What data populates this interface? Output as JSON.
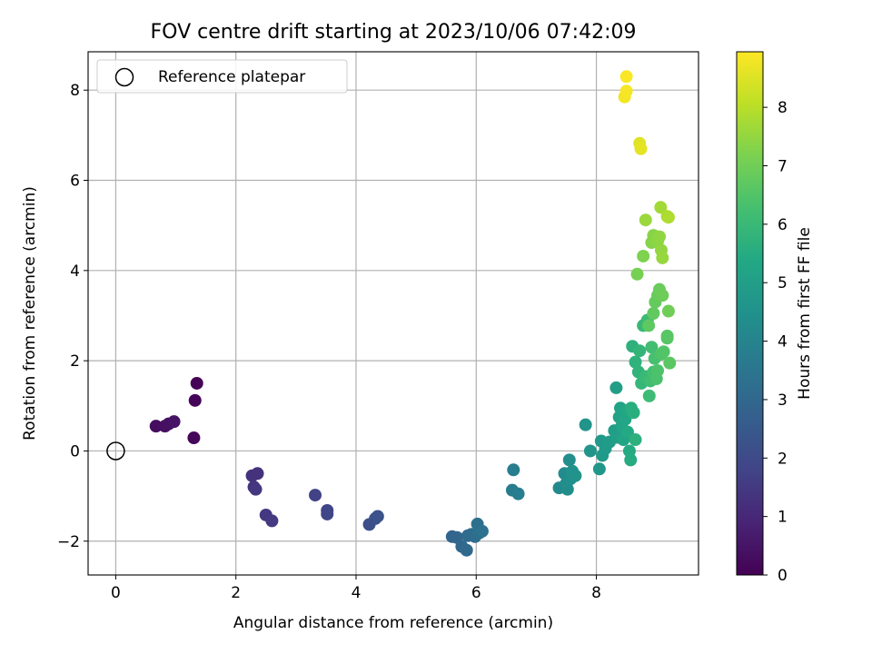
{
  "chart_data": {
    "type": "scatter",
    "title": "FOV centre drift starting at 2023/10/06 07:42:09",
    "xlabel": "Angular distance from reference (arcmin)",
    "ylabel": "Rotation from reference (arcmin)",
    "xlim": [
      -0.46,
      9.7
    ],
    "ylim": [
      -2.75,
      8.85
    ],
    "xticks": [
      0,
      2,
      4,
      6,
      8
    ],
    "yticks": [
      -2,
      0,
      2,
      4,
      6,
      8
    ],
    "xtick_labels": [
      "0",
      "2",
      "4",
      "6",
      "8"
    ],
    "ytick_labels": [
      "−2",
      "0",
      "2",
      "4",
      "6",
      "8"
    ],
    "grid": true,
    "legend": {
      "position": "top-left",
      "label": "Reference platepar"
    },
    "reference_point": {
      "x": 0,
      "y": 0
    },
    "colorbar": {
      "label": "Hours from first FF file",
      "range": [
        0,
        8.95
      ],
      "ticks": [
        0,
        1,
        2,
        3,
        4,
        5,
        6,
        7,
        8
      ],
      "tick_labels": [
        "0",
        "1",
        "2",
        "3",
        "4",
        "5",
        "6",
        "7",
        "8"
      ],
      "colormap": "viridis"
    },
    "points": [
      {
        "x": 1.35,
        "y": 1.5,
        "t": 0.05
      },
      {
        "x": 1.32,
        "y": 1.12,
        "t": 0.1
      },
      {
        "x": 1.3,
        "y": 0.29,
        "t": 0.15
      },
      {
        "x": 0.67,
        "y": 0.55,
        "t": 0.3
      },
      {
        "x": 0.82,
        "y": 0.55,
        "t": 0.35
      },
      {
        "x": 0.88,
        "y": 0.6,
        "t": 0.4
      },
      {
        "x": 0.97,
        "y": 0.65,
        "t": 0.45
      },
      {
        "x": 2.36,
        "y": -0.5,
        "t": 1.25
      },
      {
        "x": 2.27,
        "y": -0.55,
        "t": 1.3
      },
      {
        "x": 2.3,
        "y": -0.8,
        "t": 1.35
      },
      {
        "x": 2.33,
        "y": -0.85,
        "t": 1.4
      },
      {
        "x": 2.5,
        "y": -1.42,
        "t": 1.45
      },
      {
        "x": 2.6,
        "y": -1.55,
        "t": 1.5
      },
      {
        "x": 3.32,
        "y": -0.98,
        "t": 1.75
      },
      {
        "x": 3.52,
        "y": -1.32,
        "t": 1.8
      },
      {
        "x": 3.52,
        "y": -1.4,
        "t": 1.85
      },
      {
        "x": 4.22,
        "y": -1.63,
        "t": 2.15
      },
      {
        "x": 4.32,
        "y": -1.5,
        "t": 2.2
      },
      {
        "x": 4.36,
        "y": -1.45,
        "t": 2.25
      },
      {
        "x": 5.6,
        "y": -1.9,
        "t": 2.9
      },
      {
        "x": 5.68,
        "y": -1.92,
        "t": 2.95
      },
      {
        "x": 5.76,
        "y": -2.12,
        "t": 3.0
      },
      {
        "x": 5.84,
        "y": -2.2,
        "t": 3.05
      },
      {
        "x": 5.86,
        "y": -1.88,
        "t": 3.1
      },
      {
        "x": 5.92,
        "y": -1.85,
        "t": 3.15
      },
      {
        "x": 5.98,
        "y": -1.9,
        "t": 3.2
      },
      {
        "x": 6.02,
        "y": -1.62,
        "t": 3.25
      },
      {
        "x": 6.05,
        "y": -1.82,
        "t": 3.3
      },
      {
        "x": 6.1,
        "y": -1.78,
        "t": 3.35
      },
      {
        "x": 6.6,
        "y": -0.87,
        "t": 3.7
      },
      {
        "x": 6.62,
        "y": -0.42,
        "t": 3.75
      },
      {
        "x": 6.7,
        "y": -0.95,
        "t": 3.8
      },
      {
        "x": 7.38,
        "y": -0.82,
        "t": 4.2
      },
      {
        "x": 7.47,
        "y": -0.5,
        "t": 4.25
      },
      {
        "x": 7.5,
        "y": -0.72,
        "t": 4.3
      },
      {
        "x": 7.52,
        "y": -0.85,
        "t": 4.35
      },
      {
        "x": 7.55,
        "y": -0.2,
        "t": 4.4
      },
      {
        "x": 7.57,
        "y": -0.62,
        "t": 4.45
      },
      {
        "x": 7.6,
        "y": -0.45,
        "t": 4.5
      },
      {
        "x": 7.65,
        "y": -0.55,
        "t": 4.55
      },
      {
        "x": 7.82,
        "y": 0.58,
        "t": 4.6
      },
      {
        "x": 7.9,
        "y": 0.0,
        "t": 4.65
      },
      {
        "x": 8.05,
        "y": -0.4,
        "t": 4.7
      },
      {
        "x": 8.08,
        "y": 0.22,
        "t": 4.75
      },
      {
        "x": 8.1,
        "y": -0.1,
        "t": 4.8
      },
      {
        "x": 8.15,
        "y": 0.05,
        "t": 4.85
      },
      {
        "x": 8.22,
        "y": 0.2,
        "t": 4.9
      },
      {
        "x": 8.3,
        "y": 0.45,
        "t": 4.95
      },
      {
        "x": 8.33,
        "y": 1.4,
        "t": 5.0
      },
      {
        "x": 8.35,
        "y": 0.3,
        "t": 5.05
      },
      {
        "x": 8.38,
        "y": 0.75,
        "t": 5.1
      },
      {
        "x": 8.4,
        "y": 0.95,
        "t": 5.15
      },
      {
        "x": 8.42,
        "y": 0.55,
        "t": 5.2
      },
      {
        "x": 8.45,
        "y": 0.25,
        "t": 5.25
      },
      {
        "x": 8.48,
        "y": 0.7,
        "t": 5.3
      },
      {
        "x": 8.5,
        "y": 0.9,
        "t": 5.35
      },
      {
        "x": 8.52,
        "y": 0.42,
        "t": 5.4
      },
      {
        "x": 8.55,
        "y": 0.0,
        "t": 5.45
      },
      {
        "x": 8.57,
        "y": -0.2,
        "t": 5.5
      },
      {
        "x": 8.58,
        "y": 0.95,
        "t": 5.55
      },
      {
        "x": 8.62,
        "y": 0.85,
        "t": 5.6
      },
      {
        "x": 8.65,
        "y": 0.25,
        "t": 5.65
      },
      {
        "x": 8.6,
        "y": 2.32,
        "t": 5.7
      },
      {
        "x": 8.65,
        "y": 1.97,
        "t": 5.75
      },
      {
        "x": 8.7,
        "y": 1.75,
        "t": 5.8
      },
      {
        "x": 8.72,
        "y": 2.22,
        "t": 5.85
      },
      {
        "x": 8.75,
        "y": 1.5,
        "t": 5.9
      },
      {
        "x": 8.78,
        "y": 2.78,
        "t": 5.95
      },
      {
        "x": 8.82,
        "y": 1.65,
        "t": 6.0
      },
      {
        "x": 8.85,
        "y": 2.9,
        "t": 6.05
      },
      {
        "x": 8.88,
        "y": 1.22,
        "t": 6.1
      },
      {
        "x": 8.9,
        "y": 1.55,
        "t": 6.15
      },
      {
        "x": 8.92,
        "y": 2.3,
        "t": 6.2
      },
      {
        "x": 8.95,
        "y": 1.75,
        "t": 6.25
      },
      {
        "x": 8.97,
        "y": 2.05,
        "t": 6.3
      },
      {
        "x": 9.0,
        "y": 1.6,
        "t": 6.35
      },
      {
        "x": 9.02,
        "y": 1.78,
        "t": 6.4
      },
      {
        "x": 9.08,
        "y": 2.15,
        "t": 6.45
      },
      {
        "x": 9.12,
        "y": 2.2,
        "t": 6.5
      },
      {
        "x": 9.18,
        "y": 2.5,
        "t": 6.55
      },
      {
        "x": 9.18,
        "y": 2.55,
        "t": 6.6
      },
      {
        "x": 9.22,
        "y": 1.95,
        "t": 6.65
      },
      {
        "x": 8.87,
        "y": 2.78,
        "t": 6.7
      },
      {
        "x": 8.95,
        "y": 3.05,
        "t": 6.75
      },
      {
        "x": 8.98,
        "y": 3.3,
        "t": 6.8
      },
      {
        "x": 9.02,
        "y": 3.45,
        "t": 6.85
      },
      {
        "x": 9.05,
        "y": 3.58,
        "t": 6.9
      },
      {
        "x": 9.1,
        "y": 3.45,
        "t": 6.95
      },
      {
        "x": 9.2,
        "y": 3.1,
        "t": 7.0
      },
      {
        "x": 8.68,
        "y": 3.92,
        "t": 7.1
      },
      {
        "x": 8.78,
        "y": 4.32,
        "t": 7.2
      },
      {
        "x": 8.92,
        "y": 4.62,
        "t": 7.3
      },
      {
        "x": 8.95,
        "y": 4.78,
        "t": 7.35
      },
      {
        "x": 9.02,
        "y": 4.65,
        "t": 7.4
      },
      {
        "x": 9.05,
        "y": 4.75,
        "t": 7.45
      },
      {
        "x": 9.08,
        "y": 4.45,
        "t": 7.5
      },
      {
        "x": 9.1,
        "y": 4.28,
        "t": 7.55
      },
      {
        "x": 8.82,
        "y": 5.12,
        "t": 7.6
      },
      {
        "x": 9.07,
        "y": 5.4,
        "t": 7.7
      },
      {
        "x": 9.18,
        "y": 5.2,
        "t": 7.8
      },
      {
        "x": 9.2,
        "y": 5.18,
        "t": 7.85
      },
      {
        "x": 8.72,
        "y": 6.82,
        "t": 8.55
      },
      {
        "x": 8.74,
        "y": 6.7,
        "t": 8.6
      },
      {
        "x": 8.47,
        "y": 7.85,
        "t": 8.8
      },
      {
        "x": 8.5,
        "y": 7.98,
        "t": 8.85
      },
      {
        "x": 8.5,
        "y": 8.3,
        "t": 8.9
      }
    ]
  }
}
